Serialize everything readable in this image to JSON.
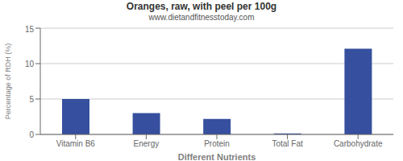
{
  "chart_data": {
    "type": "bar",
    "title": "Oranges, raw, with peel per 100g",
    "subtitle": "www.dietandfitnesstoday.com",
    "categories": [
      "Vitamin B6",
      "Energy",
      "Protein",
      "Total Fat",
      "Carbohydrate"
    ],
    "values": [
      5.0,
      3.0,
      2.2,
      0.15,
      12.1
    ],
    "color": "#364f9e",
    "xlabel": "Different Nutrients",
    "ylabel": "Percentage of RDH (%)",
    "ylim": [
      0,
      15
    ],
    "yticks": [
      0,
      5,
      10,
      15
    ],
    "grid": true
  }
}
